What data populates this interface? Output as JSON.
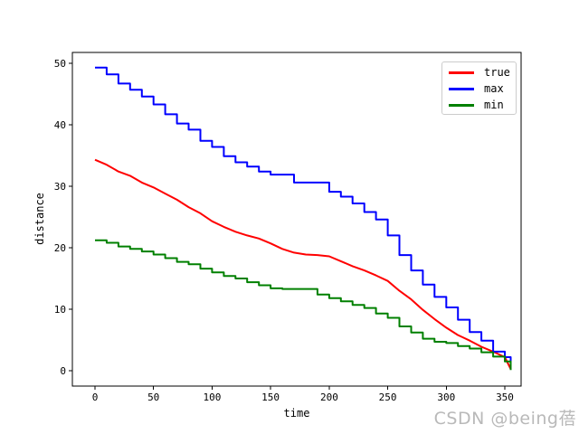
{
  "chart_data": {
    "type": "line",
    "title": "",
    "xlabel": "time",
    "ylabel": "distance",
    "xlim": [
      -19.3,
      363.9
    ],
    "ylim": [
      -2.5,
      51.76
    ],
    "xticks": [
      0,
      50,
      100,
      150,
      200,
      250,
      300,
      350
    ],
    "yticks": [
      0,
      10,
      20,
      30,
      40,
      50
    ],
    "grid": false,
    "legend": {
      "position": "upper right",
      "border_color": "#cccccc",
      "background": "#ffffff"
    },
    "x": [
      0,
      10,
      20,
      30,
      40,
      50,
      60,
      70,
      80,
      90,
      100,
      110,
      120,
      130,
      140,
      150,
      160,
      170,
      180,
      190,
      200,
      210,
      220,
      230,
      240,
      250,
      260,
      270,
      280,
      290,
      300,
      310,
      320,
      330,
      340,
      350,
      355
    ],
    "series": [
      {
        "name": "true",
        "color": "#ff0000",
        "interp": "linear",
        "values": [
          34.3,
          33.5,
          32.4,
          31.7,
          30.6,
          29.8,
          28.8,
          27.8,
          26.6,
          25.6,
          24.3,
          23.4,
          22.6,
          22.0,
          21.5,
          20.7,
          19.8,
          19.2,
          18.9,
          18.8,
          18.6,
          17.8,
          17.0,
          16.3,
          15.5,
          14.6,
          13.0,
          11.6,
          9.9,
          8.4,
          7.0,
          5.8,
          4.9,
          3.9,
          3.1,
          2.2,
          0.3
        ]
      },
      {
        "name": "max",
        "color": "#0000ff",
        "interp": "step",
        "values": [
          49.3,
          48.2,
          46.7,
          45.7,
          44.6,
          43.3,
          41.7,
          40.2,
          39.2,
          37.4,
          36.4,
          34.9,
          33.9,
          33.2,
          32.4,
          31.9,
          31.9,
          30.6,
          30.6,
          30.6,
          29.1,
          28.3,
          27.2,
          25.8,
          24.6,
          22.0,
          18.8,
          16.3,
          14.0,
          12.0,
          10.3,
          8.3,
          6.3,
          4.9,
          3.1,
          2.2,
          0.2
        ]
      },
      {
        "name": "min",
        "color": "#008000",
        "interp": "step",
        "values": [
          21.2,
          20.8,
          20.2,
          19.8,
          19.4,
          18.9,
          18.3,
          17.7,
          17.3,
          16.6,
          16.0,
          15.4,
          15.0,
          14.4,
          13.9,
          13.4,
          13.3,
          13.3,
          13.3,
          12.4,
          11.8,
          11.3,
          10.7,
          10.2,
          9.3,
          8.6,
          7.2,
          6.2,
          5.2,
          4.7,
          4.5,
          4.0,
          3.6,
          3.0,
          2.3,
          1.5,
          0.1
        ]
      }
    ]
  },
  "watermark": {
    "text": "CSDN @being蓓",
    "color": "#b9b9b9"
  }
}
